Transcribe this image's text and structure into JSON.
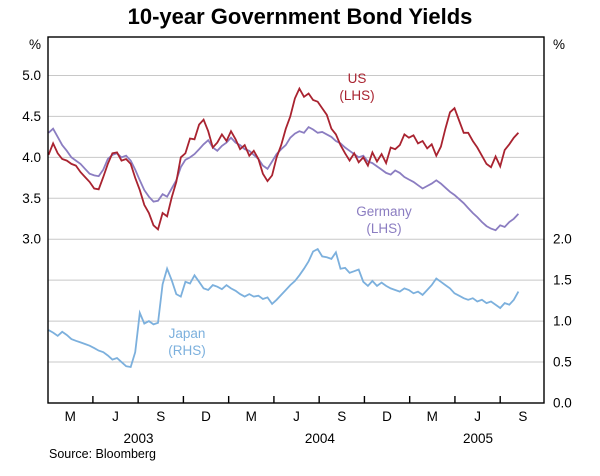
{
  "source": "Source: Bloomberg",
  "axes": {
    "left_unit": "%",
    "right_unit": "%",
    "left_ticks": [
      "5.0",
      "4.5",
      "4.0",
      "3.5",
      "3.0"
    ],
    "left_tick_values": [
      5.0,
      4.5,
      4.0,
      3.5,
      3.0
    ],
    "right_ticks": [
      "2.0",
      "1.5",
      "1.0",
      "0.5",
      "0.0"
    ],
    "right_tick_values": [
      2.0,
      1.5,
      1.0,
      0.5,
      0.0
    ],
    "gridlines_left_scale": [
      5.0,
      4.5,
      4.0,
      3.5,
      3.0,
      2.5,
      2.0,
      1.5
    ]
  },
  "colors": {
    "grid": "#c8c8c8",
    "frame": "#000000",
    "text": "#000000"
  },
  "chart_data": {
    "type": "line",
    "title": "10-year Government Bond Yields",
    "legend": "inline-labels",
    "x_unit": "decimal_year",
    "x_start_year": 2003.08,
    "x_step_years": 0.0252,
    "xlim": [
      2003.077,
      2005.817
    ],
    "ylim_left": [
      1.0,
      5.47
    ],
    "ylim_right": [
      0.0,
      4.47
    ],
    "grid": true,
    "x_axis": {
      "quarter_labels": [
        "M",
        "J",
        "S",
        "D",
        "M",
        "J",
        "S",
        "D",
        "M",
        "J",
        "S"
      ],
      "quarter_center_years": [
        2003.2,
        2003.45,
        2003.7,
        2003.95,
        2004.2,
        2004.45,
        2004.7,
        2004.95,
        2005.2,
        2005.45,
        2005.7
      ],
      "year_labels": [
        "2003",
        "2004",
        "2005"
      ]
    },
    "series": [
      {
        "name": "US",
        "axis": "left",
        "label1": "US",
        "label2": "(LHS)",
        "color": "#a92330",
        "values": [
          4.03,
          4.17,
          4.05,
          3.98,
          3.96,
          3.92,
          3.9,
          3.82,
          3.76,
          3.7,
          3.62,
          3.61,
          3.76,
          3.92,
          4.05,
          4.06,
          3.96,
          3.98,
          3.92,
          3.75,
          3.6,
          3.42,
          3.32,
          3.17,
          3.12,
          3.32,
          3.28,
          3.51,
          3.7,
          4.0,
          4.05,
          4.23,
          4.22,
          4.4,
          4.46,
          4.32,
          4.12,
          4.18,
          4.28,
          4.2,
          4.32,
          4.22,
          4.1,
          4.15,
          4.02,
          4.08,
          3.98,
          3.8,
          3.71,
          3.78,
          4.0,
          4.15,
          4.35,
          4.5,
          4.72,
          4.84,
          4.74,
          4.78,
          4.7,
          4.68,
          4.6,
          4.52,
          4.35,
          4.28,
          4.15,
          4.05,
          3.96,
          4.05,
          3.94,
          4.0,
          3.9,
          4.06,
          3.95,
          4.04,
          3.93,
          4.12,
          4.1,
          4.15,
          4.28,
          4.24,
          4.27,
          4.17,
          4.2,
          4.11,
          4.16,
          4.02,
          4.13,
          4.35,
          4.55,
          4.6,
          4.45,
          4.3,
          4.3,
          4.2,
          4.12,
          4.02,
          3.92,
          3.88,
          4.01,
          3.89,
          4.09,
          4.16,
          4.24,
          4.3
        ]
      },
      {
        "name": "Germany",
        "axis": "left",
        "label1": "Germany",
        "label2": "(LHS)",
        "color": "#8b7dc1",
        "values": [
          4.3,
          4.35,
          4.25,
          4.15,
          4.08,
          4.0,
          3.96,
          3.92,
          3.86,
          3.8,
          3.78,
          3.77,
          3.85,
          3.98,
          4.03,
          4.05,
          4.0,
          4.02,
          3.96,
          3.85,
          3.72,
          3.6,
          3.52,
          3.46,
          3.47,
          3.55,
          3.52,
          3.62,
          3.72,
          3.88,
          3.97,
          4.0,
          4.04,
          4.1,
          4.16,
          4.21,
          4.12,
          4.08,
          4.14,
          4.18,
          4.24,
          4.18,
          4.15,
          4.1,
          4.08,
          4.03,
          3.98,
          3.9,
          3.86,
          3.95,
          4.04,
          4.1,
          4.15,
          4.24,
          4.29,
          4.32,
          4.3,
          4.37,
          4.34,
          4.3,
          4.31,
          4.28,
          4.25,
          4.2,
          4.17,
          4.12,
          4.08,
          4.04,
          4.0,
          4.02,
          3.95,
          3.93,
          3.89,
          3.85,
          3.81,
          3.79,
          3.84,
          3.81,
          3.76,
          3.73,
          3.7,
          3.66,
          3.62,
          3.65,
          3.68,
          3.72,
          3.68,
          3.63,
          3.58,
          3.54,
          3.49,
          3.44,
          3.38,
          3.32,
          3.27,
          3.21,
          3.16,
          3.13,
          3.11,
          3.17,
          3.15,
          3.21,
          3.25,
          3.31
        ]
      },
      {
        "name": "Japan",
        "axis": "right",
        "label1": "Japan",
        "label2": "(RHS)",
        "color": "#7cb0dd",
        "values": [
          0.89,
          0.86,
          0.82,
          0.87,
          0.83,
          0.78,
          0.76,
          0.74,
          0.72,
          0.7,
          0.67,
          0.64,
          0.62,
          0.58,
          0.53,
          0.55,
          0.5,
          0.45,
          0.44,
          0.62,
          1.1,
          0.97,
          1.0,
          0.96,
          0.98,
          1.45,
          1.64,
          1.5,
          1.33,
          1.3,
          1.48,
          1.46,
          1.56,
          1.48,
          1.4,
          1.38,
          1.44,
          1.42,
          1.39,
          1.44,
          1.4,
          1.37,
          1.33,
          1.3,
          1.33,
          1.3,
          1.31,
          1.27,
          1.29,
          1.21,
          1.26,
          1.32,
          1.38,
          1.44,
          1.49,
          1.56,
          1.64,
          1.73,
          1.85,
          1.88,
          1.79,
          1.78,
          1.76,
          1.84,
          1.64,
          1.65,
          1.59,
          1.61,
          1.63,
          1.48,
          1.43,
          1.49,
          1.43,
          1.47,
          1.43,
          1.4,
          1.38,
          1.36,
          1.4,
          1.38,
          1.34,
          1.36,
          1.32,
          1.38,
          1.44,
          1.52,
          1.48,
          1.44,
          1.4,
          1.34,
          1.31,
          1.28,
          1.26,
          1.28,
          1.24,
          1.26,
          1.22,
          1.24,
          1.2,
          1.16,
          1.22,
          1.2,
          1.26,
          1.36
        ]
      }
    ]
  }
}
